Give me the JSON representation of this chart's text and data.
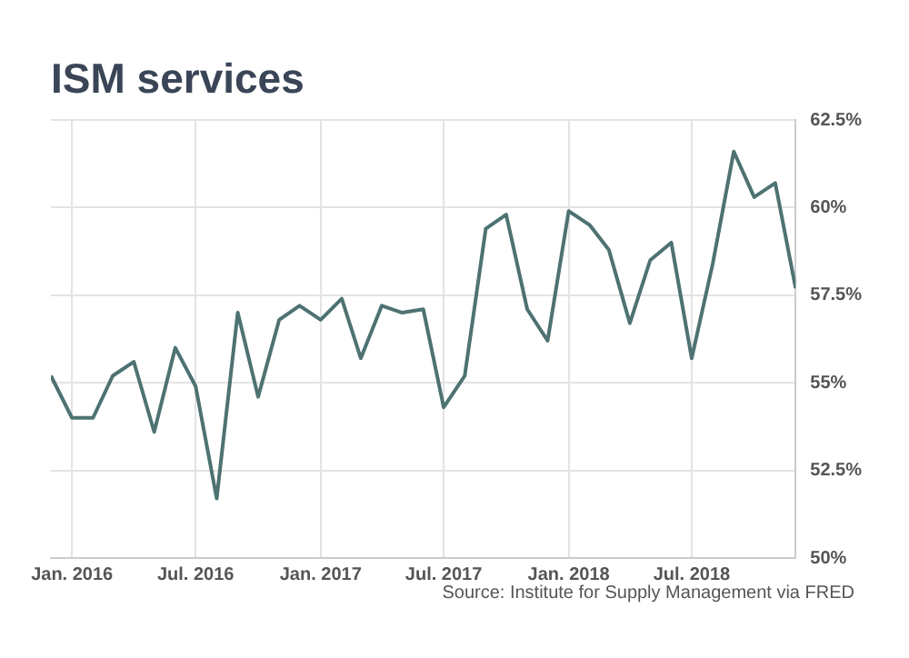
{
  "chart_data": {
    "type": "line",
    "title": "ISM services",
    "x": [
      "2015-12",
      "2016-01",
      "2016-02",
      "2016-03",
      "2016-04",
      "2016-05",
      "2016-06",
      "2016-07",
      "2016-08",
      "2016-09",
      "2016-10",
      "2016-11",
      "2016-12",
      "2017-01",
      "2017-02",
      "2017-03",
      "2017-04",
      "2017-05",
      "2017-06",
      "2017-07",
      "2017-08",
      "2017-09",
      "2017-10",
      "2017-11",
      "2017-12",
      "2018-01",
      "2018-02",
      "2018-03",
      "2018-04",
      "2018-05",
      "2018-06",
      "2018-07",
      "2018-08",
      "2018-09",
      "2018-10",
      "2018-11",
      "2018-12"
    ],
    "series": [
      {
        "color": "#4e7272",
        "values": [
          55.2,
          54.0,
          54.0,
          55.2,
          55.6,
          53.6,
          56.0,
          54.9,
          51.7,
          57.0,
          54.6,
          56.8,
          57.2,
          56.8,
          57.4,
          55.7,
          57.2,
          57.0,
          57.1,
          54.3,
          55.2,
          59.4,
          59.8,
          57.1,
          56.2,
          59.9,
          59.5,
          58.8,
          56.7,
          58.5,
          59.0,
          55.7,
          58.4,
          61.6,
          60.3,
          60.7,
          57.7
        ]
      }
    ],
    "xlim": [
      "2015-12",
      "2018-12"
    ],
    "xticks": [
      {
        "value": "2016-01",
        "label": "Jan. 2016"
      },
      {
        "value": "2016-07",
        "label": "Jul. 2016"
      },
      {
        "value": "2017-01",
        "label": "Jan. 2017"
      },
      {
        "value": "2017-07",
        "label": "Jul. 2017"
      },
      {
        "value": "2018-01",
        "label": "Jan. 2018"
      },
      {
        "value": "2018-07",
        "label": "Jul. 2018"
      }
    ],
    "ylim": [
      50,
      62.5
    ],
    "yticks": [
      {
        "value": 50,
        "label": "50%"
      },
      {
        "value": 52.5,
        "label": "52.5%"
      },
      {
        "value": 55,
        "label": "55%"
      },
      {
        "value": 57.5,
        "label": "57.5%"
      },
      {
        "value": 60,
        "label": "60%"
      },
      {
        "value": 62.5,
        "label": "62.5%"
      }
    ],
    "grid": true,
    "legend": false,
    "marker": "none",
    "line_style": "solid",
    "annotations": [
      "Source: Institute for Supply Management via FRED"
    ]
  }
}
